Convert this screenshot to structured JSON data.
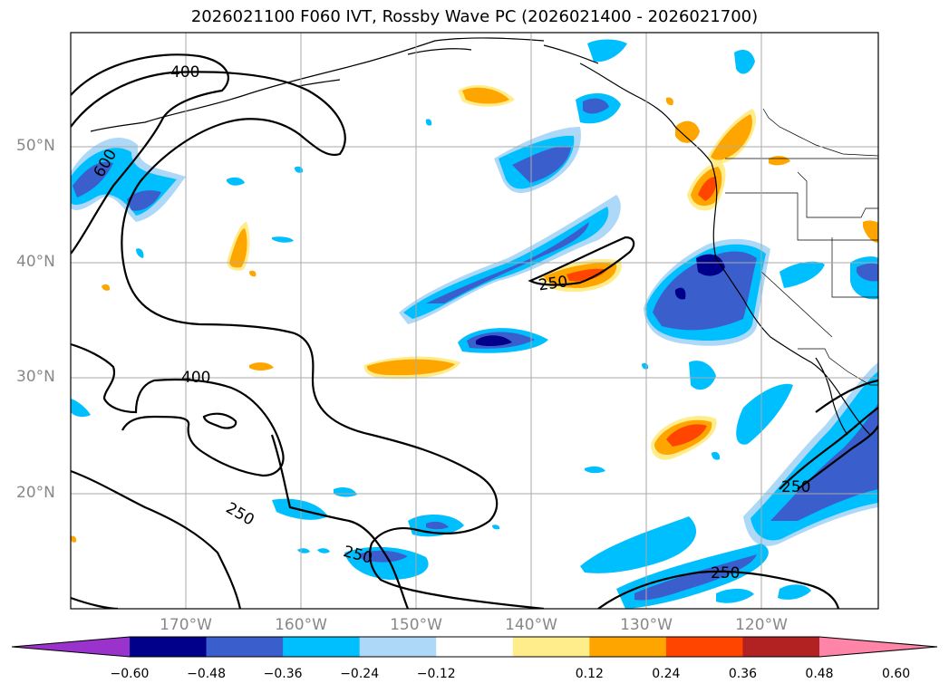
{
  "title": "2026021100 F060 IVT, Rossby Wave PC (2026021400 - 2026021700)",
  "lat_labels": [
    "50°N",
    "40°N",
    "30°N",
    "20°N"
  ],
  "lon_labels": [
    "170°W",
    "160°W",
    "150°W",
    "140°W",
    "130°W",
    "120°W"
  ],
  "contour_labels": [
    "400",
    "600",
    "400",
    "250",
    "250",
    "250",
    "250",
    "250"
  ],
  "colorbar": {
    "colors": [
      "#9933cc",
      "#00008b",
      "#3a5fcd",
      "#00bfff",
      "#add8f7",
      "#ffffff",
      "#ffec8b",
      "#ffa500",
      "#ff4500",
      "#b22222",
      "#ff85a8"
    ],
    "ticks": [
      "−0.60",
      "−0.48",
      "−0.36",
      "−0.24",
      "−0.12",
      "0.12",
      "0.24",
      "0.36",
      "0.48",
      "0.60"
    ]
  }
}
